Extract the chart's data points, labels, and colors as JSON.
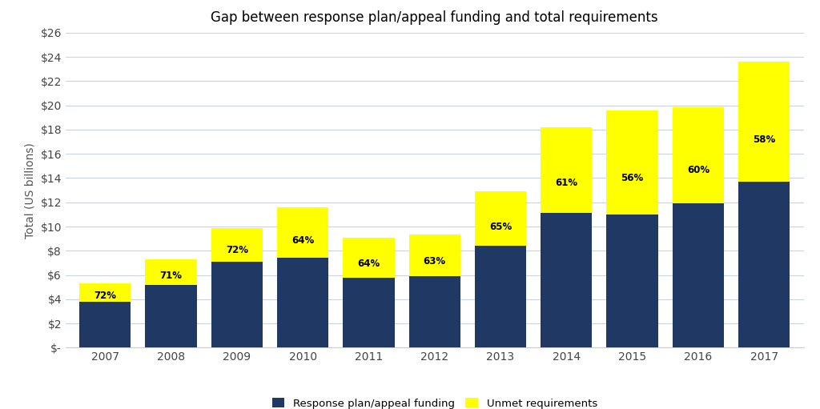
{
  "years": [
    "2007",
    "2008",
    "2009",
    "2010",
    "2011",
    "2012",
    "2013",
    "2014",
    "2015",
    "2016",
    "2017"
  ],
  "funded": [
    3.8,
    5.2,
    7.1,
    7.4,
    5.8,
    5.9,
    8.4,
    11.1,
    11.0,
    11.9,
    13.7
  ],
  "total": [
    5.28,
    7.32,
    9.86,
    11.56,
    9.06,
    9.37,
    12.92,
    18.2,
    19.6,
    19.83,
    23.6
  ],
  "coverage": [
    "72%",
    "71%",
    "72%",
    "64%",
    "64%",
    "63%",
    "65%",
    "61%",
    "56%",
    "60%",
    "58%"
  ],
  "dark_blue": "#1F3864",
  "yellow": "#FFFF00",
  "background": "#FFFFFF",
  "grid_color": "#C8D4E3",
  "title": "Gap between response plan/appeal funding and total requirements",
  "ylabel": "Total (US billions)",
  "legend_funded": "Response plan/appeal funding",
  "legend_unmet": "Unmet requirements",
  "ylim": [
    0,
    26
  ],
  "yticks": [
    0,
    2,
    4,
    6,
    8,
    10,
    12,
    14,
    16,
    18,
    20,
    22,
    24,
    26
  ],
  "label_fontsize": 8.5,
  "title_fontsize": 12,
  "bar_width": 0.78
}
